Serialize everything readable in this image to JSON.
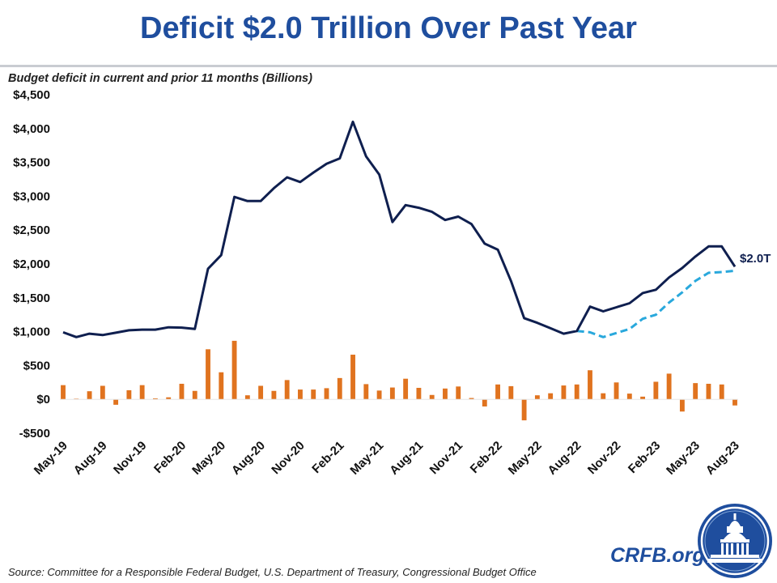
{
  "header": {
    "title": "Deficit $2.0 Trillion Over Past Year",
    "subtitle": "Budget deficit in current and prior 11 months (Billions)"
  },
  "footer": {
    "source": "Source: Committee for a Responsible Federal Budget, U.S. Department of Treasury, Congressional Budget Office",
    "brand": "CRFB.org"
  },
  "logo": {
    "icon": "capitol-dome-icon"
  },
  "colors": {
    "line_actual": "#0f1f4f",
    "line_dashed": "#29a8dc",
    "bars": "#e0731f",
    "title": "#1f4e9e"
  },
  "chart_data": {
    "type": "bar+line",
    "title": "Deficit $2.0 Trillion Over Past Year",
    "ylabel": "Budget deficit in current and prior 11 months (Billions)",
    "ylim": [
      -500,
      4500
    ],
    "yticks": [
      -500,
      0,
      500,
      1000,
      1500,
      2000,
      2500,
      3000,
      3500,
      4000,
      4500
    ],
    "ytick_labels": [
      "-$500",
      "$0",
      "$500",
      "$1,000",
      "$1,500",
      "$2,000",
      "$2,500",
      "$3,000",
      "$3,500",
      "$4,000",
      "$4,500"
    ],
    "x": [
      "May-19",
      "Jun-19",
      "Jul-19",
      "Aug-19",
      "Sep-19",
      "Oct-19",
      "Nov-19",
      "Dec-19",
      "Jan-20",
      "Feb-20",
      "Mar-20",
      "Apr-20",
      "May-20",
      "Jun-20",
      "Jul-20",
      "Aug-20",
      "Sep-20",
      "Oct-20",
      "Nov-20",
      "Dec-20",
      "Jan-21",
      "Feb-21",
      "Mar-21",
      "Apr-21",
      "May-21",
      "Jun-21",
      "Jul-21",
      "Aug-21",
      "Sep-21",
      "Oct-21",
      "Nov-21",
      "Dec-21",
      "Jan-22",
      "Feb-22",
      "Mar-22",
      "Apr-22",
      "May-22",
      "Jun-22",
      "Jul-22",
      "Aug-22",
      "Sep-22",
      "Oct-22",
      "Nov-22",
      "Dec-22",
      "Jan-23",
      "Feb-23",
      "Mar-23",
      "Apr-23",
      "May-23",
      "Jun-23",
      "Jul-23",
      "Aug-23"
    ],
    "xtick_labels": [
      "May-19",
      "Aug-19",
      "Nov-19",
      "Feb-20",
      "May-20",
      "Aug-20",
      "Nov-20",
      "Feb-21",
      "May-21",
      "Aug-21",
      "Nov-21",
      "Feb-22",
      "May-22",
      "Aug-22",
      "Nov-22",
      "Feb-23",
      "May-23",
      "Aug-23"
    ],
    "xtick_step": 3,
    "series": [
      {
        "kind": "bar",
        "values": [
          210,
          10,
          120,
          200,
          -80,
          135,
          210,
          15,
          30,
          230,
          125,
          740,
          400,
          865,
          60,
          200,
          125,
          285,
          145,
          145,
          165,
          315,
          660,
          225,
          130,
          175,
          305,
          170,
          65,
          160,
          190,
          20,
          -105,
          220,
          195,
          -310,
          60,
          90,
          205,
          220,
          430,
          90,
          250,
          85,
          40,
          260,
          380,
          -180,
          240,
          230,
          220,
          -90
        ]
      },
      {
        "kind": "line",
        "style": "solid",
        "values": [
          990,
          920,
          970,
          950,
          985,
          1020,
          1030,
          1030,
          1065,
          1060,
          1040,
          1930,
          2130,
          2990,
          2930,
          2930,
          3120,
          3280,
          3210,
          3350,
          3480,
          3560,
          4100,
          3590,
          3320,
          2620,
          2870,
          2830,
          2770,
          2650,
          2700,
          2590,
          2300,
          2210,
          1750,
          1200,
          1130,
          1050,
          970,
          1010,
          1370,
          1300,
          1360,
          1420,
          1570,
          1620,
          1800,
          1940,
          2110,
          2260,
          2260,
          1960
        ]
      },
      {
        "kind": "line",
        "style": "dashed",
        "values": [
          null,
          null,
          null,
          null,
          null,
          null,
          null,
          null,
          null,
          null,
          null,
          null,
          null,
          null,
          null,
          null,
          null,
          null,
          null,
          null,
          null,
          null,
          null,
          null,
          null,
          null,
          null,
          null,
          null,
          null,
          null,
          null,
          null,
          null,
          null,
          null,
          null,
          null,
          null,
          1010,
          990,
          920,
          980,
          1040,
          1190,
          1250,
          1430,
          1580,
          1750,
          1870,
          1880,
          1900
        ]
      }
    ],
    "annotations": [
      {
        "text": "$2.0T",
        "at": "Aug-23"
      }
    ]
  }
}
